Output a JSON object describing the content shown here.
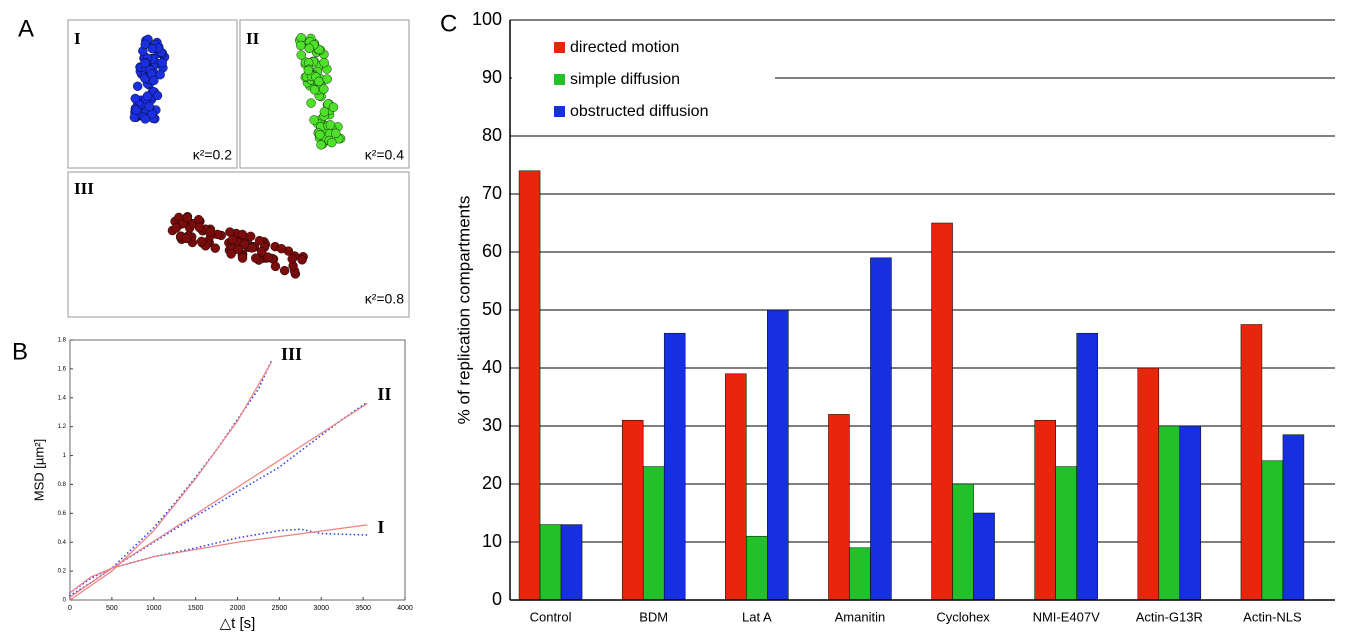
{
  "panel_labels": [
    "A",
    "B",
    "C"
  ],
  "panel_a": {
    "boxes": [
      {
        "label": "I",
        "kappa": "κ²=0.2"
      },
      {
        "label": "II",
        "kappa": "κ²=0.4"
      },
      {
        "label": "III",
        "kappa": "κ²=0.8"
      }
    ]
  },
  "chart_data": [
    {
      "type": "line",
      "xlabel": "△t [s]",
      "ylabel": "MSD [µm²]",
      "xlim": [
        0,
        4000
      ],
      "xticks": [
        0,
        500,
        1000,
        1500,
        2000,
        2500,
        3000,
        3500,
        4000
      ],
      "ylim": [
        0,
        1.8
      ],
      "yticks": [
        0,
        0.2,
        0.4,
        0.6,
        0.8,
        1,
        1.2,
        1.4,
        1.6,
        1.8
      ],
      "series": [
        {
          "name": "III",
          "color": "#3344ee",
          "style": "dotted",
          "x": [
            0,
            250,
            500,
            750,
            1000,
            1250,
            1500,
            1750,
            2000,
            2250,
            2400
          ],
          "values": [
            0.03,
            0.12,
            0.22,
            0.36,
            0.5,
            0.67,
            0.85,
            1.04,
            1.25,
            1.46,
            1.65
          ]
        },
        {
          "name": "II",
          "color": "#3344ee",
          "style": "dotted",
          "x": [
            0,
            250,
            500,
            1000,
            1500,
            2000,
            2500,
            3000,
            3250,
            3550
          ],
          "values": [
            0.03,
            0.12,
            0.22,
            0.4,
            0.58,
            0.75,
            0.92,
            1.14,
            1.25,
            1.37
          ]
        },
        {
          "name": "I",
          "color": "#3344ee",
          "style": "dotted",
          "x": [
            0,
            250,
            500,
            1000,
            1500,
            2000,
            2500,
            2750,
            3000,
            3550
          ],
          "values": [
            0.05,
            0.15,
            0.22,
            0.3,
            0.36,
            0.43,
            0.48,
            0.49,
            0.46,
            0.45
          ]
        },
        {
          "color": "#f08080",
          "style": "solid",
          "x": [
            0,
            500,
            1000,
            1500,
            2000,
            2400
          ],
          "values": [
            0,
            0.2,
            0.48,
            0.84,
            1.24,
            1.64
          ]
        },
        {
          "color": "#f08080",
          "style": "solid",
          "x": [
            0,
            500,
            3550
          ],
          "values": [
            0.02,
            0.22,
            1.36
          ]
        },
        {
          "color": "#f08080",
          "style": "solid",
          "x": [
            0,
            250,
            500,
            1000,
            2000,
            3550
          ],
          "values": [
            0.05,
            0.16,
            0.22,
            0.3,
            0.4,
            0.52
          ]
        }
      ]
    },
    {
      "type": "bar",
      "ylabel": "% of replication compartments",
      "categories": [
        "Control",
        "BDM",
        "Lat A",
        "Amanitin",
        "Cyclohex",
        "NMI-E407V",
        "Actin-G13R",
        "Actin-NLS"
      ],
      "ylim": [
        0,
        100
      ],
      "yticks": [
        0,
        10,
        20,
        30,
        40,
        50,
        60,
        70,
        80,
        90,
        100
      ],
      "grid": true,
      "legend": "top-left",
      "series": [
        {
          "name": "directed motion",
          "color": "#e8260c",
          "values": [
            74,
            31,
            39,
            32,
            65,
            31,
            40,
            47.5
          ]
        },
        {
          "name": "simple diffusion",
          "color": "#22c12a",
          "values": [
            13,
            23,
            11,
            9,
            20,
            23,
            30,
            24
          ]
        },
        {
          "name": "obstructed diffusion",
          "color": "#1630e0",
          "values": [
            13,
            46,
            50,
            59,
            15,
            46,
            30,
            28.5
          ]
        }
      ]
    }
  ]
}
